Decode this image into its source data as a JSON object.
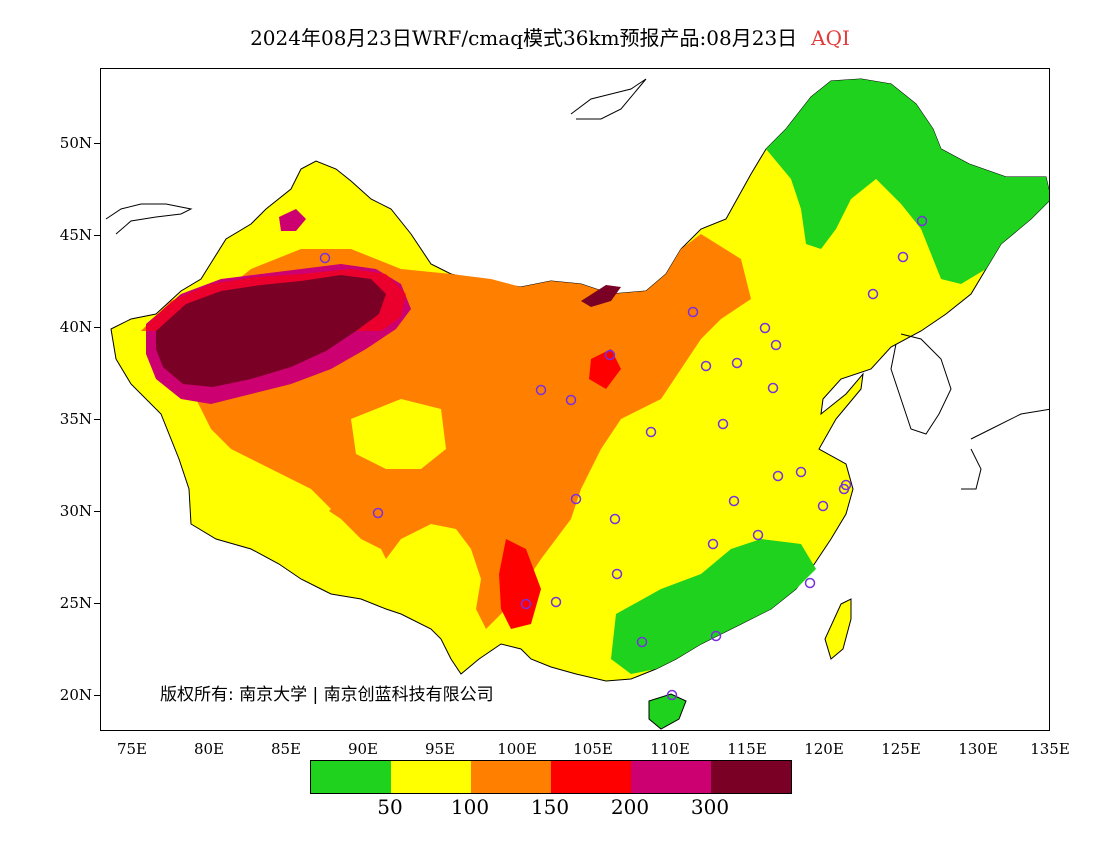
{
  "title": {
    "main": "2024年08月23日WRF/cmaq模式36km预报产品:08月23日",
    "product": "AQI"
  },
  "axes": {
    "lat_ticks": [
      "50N",
      "45N",
      "40N",
      "35N",
      "30N",
      "25N",
      "20N"
    ],
    "lon_ticks": [
      "75E",
      "80E",
      "85E",
      "90E",
      "95E",
      "100E",
      "105E",
      "110E",
      "115E",
      "120E",
      "125E",
      "130E",
      "135E"
    ]
  },
  "copyright": "版权所有: 南京大学 | 南京创蓝科技有限公司",
  "legend": {
    "colors": [
      "#1ed21e",
      "#ffff00",
      "#ff8000",
      "#ff0000",
      "#cc0070",
      "#7a0025"
    ],
    "labels": [
      "50",
      "100",
      "150",
      "200",
      "300"
    ]
  },
  "colors": {
    "good": "#1ed21e",
    "moderate": "#ffff00",
    "usg": "#ff8000",
    "unhealthy": "#ff0000",
    "very_unhealthy": "#cc0070",
    "hazardous": "#7a0025",
    "station_marker": "#7a2fe0"
  }
}
